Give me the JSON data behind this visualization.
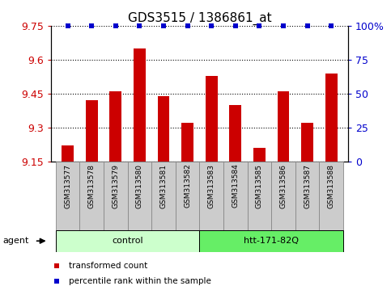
{
  "title": "GDS3515 / 1386861_at",
  "samples": [
    "GSM313577",
    "GSM313578",
    "GSM313579",
    "GSM313580",
    "GSM313581",
    "GSM313582",
    "GSM313583",
    "GSM313584",
    "GSM313585",
    "GSM313586",
    "GSM313587",
    "GSM313588"
  ],
  "bar_values": [
    9.22,
    9.42,
    9.46,
    9.65,
    9.44,
    9.32,
    9.53,
    9.4,
    9.21,
    9.46,
    9.32,
    9.54
  ],
  "percentile_values": [
    100,
    100,
    100,
    100,
    100,
    100,
    100,
    100,
    100,
    100,
    100,
    100
  ],
  "bar_color": "#cc0000",
  "percentile_color": "#0000cc",
  "ymin": 9.15,
  "ymax": 9.75,
  "yticks": [
    9.15,
    9.3,
    9.45,
    9.6,
    9.75
  ],
  "y2min": 0,
  "y2max": 100,
  "y2ticks": [
    0,
    25,
    50,
    75,
    100
  ],
  "y2ticklabels": [
    "0",
    "25",
    "50",
    "75",
    "100%"
  ],
  "groups": [
    {
      "label": "control",
      "start": 0,
      "end": 5,
      "color": "#ccffcc"
    },
    {
      "label": "htt-171-82Q",
      "start": 6,
      "end": 11,
      "color": "#66ee66"
    }
  ],
  "agent_label": "agent",
  "legend_items": [
    {
      "color": "#cc0000",
      "label": "transformed count"
    },
    {
      "color": "#0000cc",
      "label": "percentile rank within the sample"
    }
  ],
  "title_fontsize": 11,
  "tick_fontsize": 9,
  "bar_width": 0.5,
  "background_color": "#ffffff",
  "sample_box_color": "#cccccc",
  "sample_box_edge": "#888888"
}
